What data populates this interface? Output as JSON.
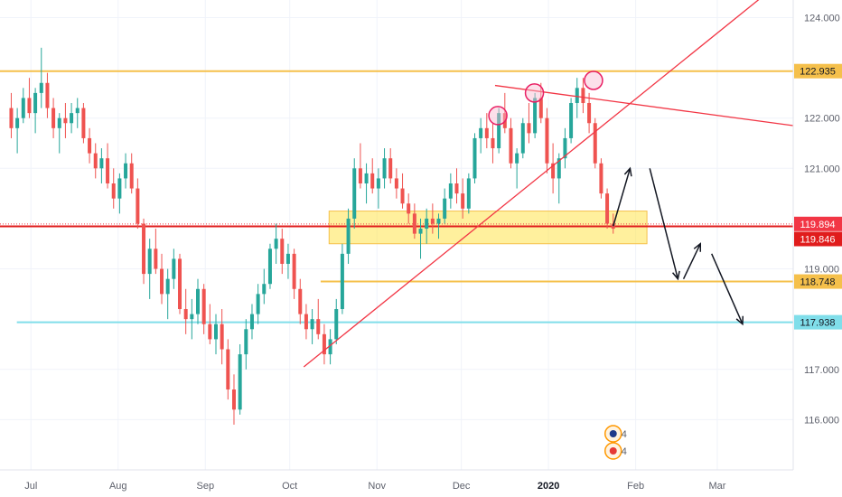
{
  "chart_data": {
    "type": "candlestick",
    "title": "",
    "xlabel": "",
    "ylabel": "",
    "ylim": [
      115.0,
      124.35
    ],
    "y_ticks": [
      "124.000",
      "122.000",
      "121.000",
      "119.000",
      "117.000",
      "116.000"
    ],
    "x_ticks": [
      {
        "label": "Jul",
        "date": "2019-07-01",
        "bold": false
      },
      {
        "label": "Aug",
        "date": "2019-08-01",
        "bold": false
      },
      {
        "label": "Sep",
        "date": "2019-09-01",
        "bold": false
      },
      {
        "label": "Oct",
        "date": "2019-10-01",
        "bold": false
      },
      {
        "label": "Nov",
        "date": "2019-11-01",
        "bold": false
      },
      {
        "label": "Dec",
        "date": "2019-12-01",
        "bold": false
      },
      {
        "label": "2020",
        "date": "2020-01-01",
        "bold": true
      },
      {
        "label": "Feb",
        "date": "2020-02-01",
        "bold": false
      },
      {
        "label": "Mar",
        "date": "2020-03-01",
        "bold": false
      }
    ],
    "x_range": [
      "2019-06-20",
      "2020-03-28"
    ],
    "candles_ohlc": [
      [
        122.2,
        122.5,
        121.6,
        121.8
      ],
      [
        121.8,
        122.2,
        121.3,
        122.0
      ],
      [
        122.0,
        122.6,
        121.9,
        122.4
      ],
      [
        122.4,
        122.8,
        122.0,
        122.1
      ],
      [
        122.1,
        122.6,
        121.7,
        122.5
      ],
      [
        122.5,
        123.4,
        122.2,
        122.7
      ],
      [
        122.7,
        122.9,
        122.0,
        122.2
      ],
      [
        122.2,
        122.4,
        121.6,
        121.8
      ],
      [
        121.8,
        122.1,
        121.3,
        122.0
      ],
      [
        122.0,
        122.3,
        121.6,
        121.9
      ],
      [
        121.9,
        122.3,
        121.7,
        122.1
      ],
      [
        122.1,
        122.4,
        121.8,
        122.2
      ],
      [
        122.2,
        122.3,
        121.5,
        121.6
      ],
      [
        121.6,
        121.8,
        121.1,
        121.3
      ],
      [
        121.3,
        121.5,
        120.8,
        121.0
      ],
      [
        121.0,
        121.4,
        120.7,
        121.2
      ],
      [
        121.2,
        121.5,
        120.6,
        120.7
      ],
      [
        120.7,
        121.0,
        120.2,
        120.4
      ],
      [
        120.4,
        120.9,
        120.1,
        120.8
      ],
      [
        120.8,
        121.3,
        120.6,
        121.1
      ],
      [
        121.1,
        121.3,
        120.5,
        120.6
      ],
      [
        120.6,
        120.8,
        119.8,
        119.9
      ],
      [
        119.9,
        120.0,
        118.7,
        118.9
      ],
      [
        118.9,
        119.6,
        118.4,
        119.4
      ],
      [
        119.4,
        119.8,
        118.9,
        119.0
      ],
      [
        119.0,
        119.3,
        118.3,
        118.5
      ],
      [
        118.5,
        119.0,
        118.0,
        118.8
      ],
      [
        118.8,
        119.4,
        118.6,
        119.2
      ],
      [
        119.2,
        119.3,
        118.1,
        118.2
      ],
      [
        118.2,
        118.6,
        117.7,
        118.0
      ],
      [
        118.0,
        118.4,
        117.6,
        118.1
      ],
      [
        118.1,
        118.8,
        117.9,
        118.6
      ],
      [
        118.6,
        118.7,
        117.7,
        117.9
      ],
      [
        117.9,
        118.3,
        117.5,
        117.6
      ],
      [
        117.6,
        118.1,
        117.3,
        117.9
      ],
      [
        117.9,
        118.2,
        117.1,
        117.4
      ],
      [
        117.4,
        117.6,
        116.4,
        116.6
      ],
      [
        116.6,
        116.9,
        115.9,
        116.2
      ],
      [
        116.2,
        117.5,
        116.1,
        117.3
      ],
      [
        117.3,
        118.0,
        117.0,
        117.8
      ],
      [
        117.8,
        118.3,
        117.6,
        118.1
      ],
      [
        118.1,
        118.7,
        117.9,
        118.5
      ],
      [
        118.5,
        119.0,
        118.3,
        118.7
      ],
      [
        118.7,
        119.5,
        118.6,
        119.4
      ],
      [
        119.4,
        119.9,
        119.1,
        119.6
      ],
      [
        119.6,
        119.8,
        118.9,
        119.1
      ],
      [
        119.1,
        119.5,
        118.8,
        119.3
      ],
      [
        119.3,
        119.4,
        118.4,
        118.6
      ],
      [
        118.6,
        118.8,
        117.9,
        118.1
      ],
      [
        118.1,
        118.3,
        117.6,
        117.8
      ],
      [
        117.8,
        118.2,
        117.5,
        118.0
      ],
      [
        118.0,
        118.4,
        117.6,
        117.7
      ],
      [
        117.7,
        117.9,
        117.1,
        117.3
      ],
      [
        117.3,
        117.8,
        117.1,
        117.6
      ],
      [
        117.6,
        118.4,
        117.5,
        118.2
      ],
      [
        118.2,
        119.5,
        118.1,
        119.3
      ],
      [
        119.3,
        120.2,
        119.1,
        120.0
      ],
      [
        120.0,
        121.2,
        119.8,
        121.0
      ],
      [
        121.0,
        121.5,
        120.6,
        120.7
      ],
      [
        120.7,
        121.1,
        120.3,
        120.9
      ],
      [
        120.9,
        121.2,
        120.5,
        120.6
      ],
      [
        120.6,
        121.0,
        120.2,
        120.8
      ],
      [
        120.8,
        121.4,
        120.6,
        121.2
      ],
      [
        121.2,
        121.4,
        120.7,
        120.8
      ],
      [
        120.8,
        121.0,
        120.4,
        120.6
      ],
      [
        120.6,
        120.9,
        120.2,
        120.3
      ],
      [
        120.3,
        120.5,
        119.9,
        120.1
      ],
      [
        120.1,
        120.3,
        119.6,
        119.7
      ],
      [
        119.7,
        120.0,
        119.2,
        119.8
      ],
      [
        119.8,
        120.2,
        119.5,
        120.0
      ],
      [
        120.0,
        120.3,
        119.7,
        119.9
      ],
      [
        119.9,
        120.1,
        119.6,
        120.0
      ],
      [
        120.0,
        120.6,
        119.9,
        120.4
      ],
      [
        120.4,
        120.9,
        120.2,
        120.7
      ],
      [
        120.7,
        121.0,
        120.3,
        120.5
      ],
      [
        120.5,
        120.8,
        120.0,
        120.2
      ],
      [
        120.2,
        120.9,
        120.1,
        120.8
      ],
      [
        120.8,
        121.7,
        120.7,
        121.6
      ],
      [
        121.6,
        122.0,
        121.3,
        121.8
      ],
      [
        121.8,
        122.1,
        121.4,
        121.6
      ],
      [
        121.6,
        121.9,
        121.1,
        121.4
      ],
      [
        121.4,
        122.2,
        121.3,
        122.1
      ],
      [
        122.1,
        122.5,
        121.7,
        121.8
      ],
      [
        121.8,
        122.0,
        121.0,
        121.1
      ],
      [
        121.1,
        121.4,
        120.6,
        121.3
      ],
      [
        121.3,
        122.0,
        121.2,
        121.9
      ],
      [
        121.9,
        122.3,
        121.5,
        121.7
      ],
      [
        121.7,
        122.5,
        121.6,
        122.4
      ],
      [
        122.4,
        122.7,
        121.9,
        122.0
      ],
      [
        122.0,
        122.2,
        120.9,
        121.1
      ],
      [
        121.1,
        121.5,
        120.5,
        120.8
      ],
      [
        120.8,
        121.3,
        120.3,
        121.2
      ],
      [
        121.2,
        121.8,
        121.0,
        121.6
      ],
      [
        121.6,
        122.4,
        121.5,
        122.3
      ],
      [
        122.3,
        122.8,
        122.0,
        122.6
      ],
      [
        122.6,
        122.8,
        122.1,
        122.3
      ],
      [
        122.3,
        122.5,
        121.7,
        121.9
      ],
      [
        121.9,
        122.0,
        121.0,
        121.1
      ],
      [
        121.1,
        121.2,
        120.4,
        120.5
      ],
      [
        120.5,
        120.6,
        119.8,
        119.9
      ],
      [
        119.9,
        120.1,
        119.7,
        119.8
      ]
    ]
  },
  "price_axis": {
    "labels": [
      {
        "text": "122.935",
        "value": 122.935,
        "bg": "#f5c04b",
        "color": "#131722"
      },
      {
        "text": "119.894",
        "value": 119.894,
        "bg": "#f23645",
        "color": "#ffffff"
      },
      {
        "text": "119.846",
        "value": 119.846,
        "bg": "#e01c1c",
        "color": "#ffffff"
      },
      {
        "text": "118.748",
        "value": 118.748,
        "bg": "#f5c04b",
        "color": "#131722"
      },
      {
        "text": "117.938",
        "value": 117.938,
        "bg": "#80deea",
        "color": "#131722"
      }
    ]
  },
  "drawings": {
    "horizontal_lines": [
      {
        "name": "resistance-line",
        "value": 122.935,
        "color": "#f5c04b",
        "from_date": "2019-06-20"
      },
      {
        "name": "support-line",
        "value": 119.846,
        "color": "#e01c1c",
        "from_date": "2019-06-20"
      },
      {
        "name": "target-line-1",
        "value": 118.748,
        "color": "#f5c04b",
        "from_date": "2019-10-12"
      },
      {
        "name": "target-line-2",
        "value": 117.938,
        "color": "#80deea",
        "from_date": "2019-06-26"
      }
    ],
    "zone": {
      "from_date": "2019-10-15",
      "to_date": "2020-02-05",
      "high": 120.15,
      "low": 119.5,
      "color": "#ffe44d"
    },
    "trendlines": [
      {
        "name": "uptrend-line",
        "from": [
          "2019-10-06",
          117.05
        ],
        "to": [
          "2020-03-20",
          124.55
        ],
        "color": "#f23645"
      },
      {
        "name": "neckline",
        "from": [
          "2019-12-13",
          122.65
        ],
        "to": [
          "2020-03-28",
          121.85
        ],
        "color": "#f23645"
      }
    ],
    "pattern_circles": [
      {
        "name": "left-shoulder-marker",
        "date": "2019-12-14",
        "value": 122.05
      },
      {
        "name": "head-marker",
        "date": "2019-12-27",
        "value": 122.5
      },
      {
        "name": "right-shoulder-marker",
        "date": "2020-01-17",
        "value": 122.75
      }
    ],
    "projection_arrows": [
      [
        "2020-01-24",
        119.85
      ],
      [
        "2020-01-30",
        121.0
      ],
      [
        "2020-02-06",
        121.0
      ],
      [
        "2020-02-16",
        118.8
      ],
      [
        "2020-02-18",
        118.8
      ],
      [
        "2020-02-24",
        119.5
      ],
      [
        "2020-02-28",
        119.3
      ],
      [
        "2020-03-10",
        117.9
      ]
    ]
  },
  "event_markers": [
    {
      "name": "event-marker-1",
      "date": "2020-01-24",
      "label": "4"
    },
    {
      "name": "event-marker-2",
      "date": "2020-01-24",
      "label": "4"
    }
  ]
}
